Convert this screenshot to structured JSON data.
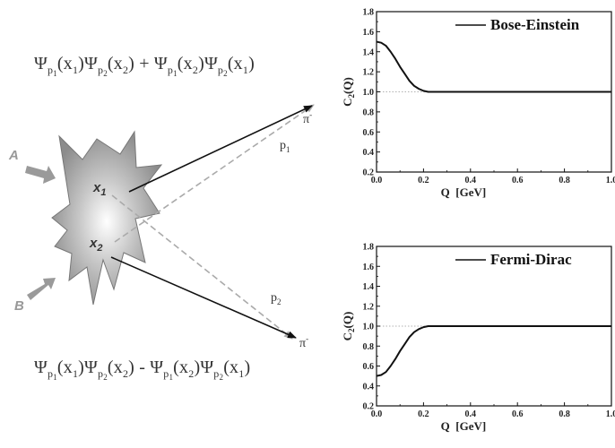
{
  "wavefunctions": {
    "symmetric": {
      "t1": "Ψ",
      "t1a": "p",
      "t1b": "1",
      "t1c": "(x",
      "t1d": "1",
      "t1e": ")",
      "t2": "Ψ",
      "t2a": "p",
      "t2b": "2",
      "t2c": "(x",
      "t2d": "2",
      "t2e": ")",
      "op": " + ",
      "t3": "Ψ",
      "t3a": "p",
      "t3b": "1",
      "t3c": "(x",
      "t3d": "2",
      "t3e": ")",
      "t4": "Ψ",
      "t4a": "p",
      "t4b": "2",
      "t4c": "(x",
      "t4d": "1",
      "t4e": ")"
    },
    "antisymmetric": {
      "t1": "Ψ",
      "t1a": "p",
      "t1b": "1",
      "t1c": "(x",
      "t1d": "1",
      "t1e": ")",
      "t2": "Ψ",
      "t2a": "p",
      "t2b": "2",
      "t2c": "(x",
      "t2d": "2",
      "t2e": ")",
      "op": " - ",
      "t3": "Ψ",
      "t3a": "p",
      "t3b": "1",
      "t3c": "(x",
      "t3d": "2",
      "t3e": ")",
      "t4": "Ψ",
      "t4a": "p",
      "t4b": "2",
      "t4c": "(x",
      "t4d": "1",
      "t4e": ")"
    }
  },
  "diagram": {
    "beam_a": "A",
    "beam_b": "B",
    "x1": "x",
    "x1_sub": "1",
    "x2": "x",
    "x2_sub": "2",
    "pion_top": "π",
    "pion_top_charge": "-",
    "pion_bottom": "π",
    "pion_bottom_charge": "-",
    "p1": "p",
    "p1_sub": "1",
    "p2": "p",
    "p2_sub": "2",
    "colors": {
      "solid_arrow": "#111111",
      "dashed_arrow": "#aaaaaa",
      "source": "#9a9a9a"
    }
  },
  "chart_data": [
    {
      "type": "line",
      "legend": "Bose-Einstein",
      "xlabel": "Q  [GeV]",
      "ylabel": "C",
      "ylabel_sub": "2",
      "ylabel_tail": "(Q)",
      "xlim": [
        0.0,
        1.0
      ],
      "ylim": [
        0.2,
        1.8
      ],
      "xticks": [
        "0.0",
        "0.2",
        "0.4",
        "0.6",
        "0.8",
        "1.0"
      ],
      "yticks": [
        "0.2",
        "0.4",
        "0.6",
        "0.8",
        "1.0",
        "1.2",
        "1.4",
        "1.6",
        "1.8"
      ],
      "reference_line": 1.0,
      "series": [
        {
          "x": [
            0.0,
            0.02,
            0.04,
            0.06,
            0.08,
            0.1,
            0.12,
            0.14,
            0.16,
            0.18,
            0.2,
            0.22,
            0.25,
            0.3,
            0.4,
            0.5,
            0.6,
            0.7,
            0.8,
            0.9,
            1.0
          ],
          "values": [
            1.5,
            1.49,
            1.46,
            1.4,
            1.33,
            1.25,
            1.18,
            1.11,
            1.06,
            1.03,
            1.01,
            1.0,
            1.0,
            1.0,
            1.0,
            1.0,
            1.0,
            1.0,
            1.0,
            1.0,
            1.0
          ]
        }
      ]
    },
    {
      "type": "line",
      "legend": "Fermi-Dirac",
      "xlabel": "Q  [GeV]",
      "ylabel": "C",
      "ylabel_sub": "2",
      "ylabel_tail": "(Q)",
      "xlim": [
        0.0,
        1.0
      ],
      "ylim": [
        0.2,
        1.8
      ],
      "xticks": [
        "0.0",
        "0.2",
        "0.4",
        "0.6",
        "0.8",
        "1.0"
      ],
      "yticks": [
        "0.2",
        "0.4",
        "0.6",
        "0.8",
        "1.0",
        "1.2",
        "1.4",
        "1.6",
        "1.8"
      ],
      "reference_line": 1.0,
      "series": [
        {
          "x": [
            0.0,
            0.02,
            0.04,
            0.06,
            0.08,
            0.1,
            0.12,
            0.14,
            0.16,
            0.18,
            0.2,
            0.22,
            0.25,
            0.3,
            0.4,
            0.5,
            0.6,
            0.7,
            0.8,
            0.9,
            1.0
          ],
          "values": [
            0.5,
            0.51,
            0.54,
            0.6,
            0.67,
            0.75,
            0.82,
            0.89,
            0.94,
            0.97,
            0.99,
            1.0,
            1.0,
            1.0,
            1.0,
            1.0,
            1.0,
            1.0,
            1.0,
            1.0,
            1.0
          ]
        }
      ]
    }
  ]
}
